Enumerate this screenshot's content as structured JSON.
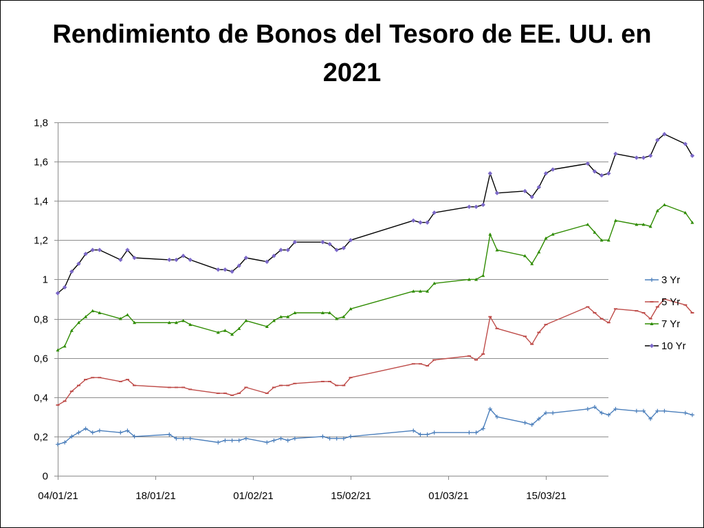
{
  "chart_data": {
    "type": "line",
    "title": "Rendimiento de Bonos del Tesoro de EE. UU. en 2021",
    "title_lines": [
      "Rendimiento de Bonos del Tesoro de EE. UU. en",
      "2021"
    ],
    "xlabel": "",
    "ylabel": "",
    "x_start": "2021-01-04",
    "x_end": "2021-03-24",
    "ylim": [
      0,
      1.8
    ],
    "y_ticks": [
      {
        "value": 0,
        "label": "0"
      },
      {
        "value": 0.2,
        "label": "0,2"
      },
      {
        "value": 0.4,
        "label": "0,4"
      },
      {
        "value": 0.6,
        "label": "0,6"
      },
      {
        "value": 0.8,
        "label": "0,8"
      },
      {
        "value": 1.0,
        "label": "1"
      },
      {
        "value": 1.2,
        "label": "1,2"
      },
      {
        "value": 1.4,
        "label": "1,4"
      },
      {
        "value": 1.6,
        "label": "1,6"
      },
      {
        "value": 1.8,
        "label": "1,8"
      }
    ],
    "x_ticks": [
      {
        "date": "2021-01-04",
        "label": "04/01/21"
      },
      {
        "date": "2021-01-18",
        "label": "18/01/21"
      },
      {
        "date": "2021-02-01",
        "label": "01/02/21"
      },
      {
        "date": "2021-02-15",
        "label": "15/02/21"
      },
      {
        "date": "2021-03-01",
        "label": "01/03/21"
      },
      {
        "date": "2021-03-15",
        "label": "15/03/21"
      }
    ],
    "grid": true,
    "legend_position": "right",
    "x": [
      "2021-01-04",
      "2021-01-05",
      "2021-01-06",
      "2021-01-07",
      "2021-01-08",
      "2021-01-09",
      "2021-01-10",
      "2021-01-11",
      "2021-01-13",
      "2021-01-14",
      "2021-01-15",
      "2021-01-16",
      "2021-01-20",
      "2021-01-21",
      "2021-01-22",
      "2021-01-24",
      "2021-01-25",
      "2021-01-26",
      "2021-01-27",
      "2021-01-29",
      "2021-01-30",
      "2021-01-31",
      "2021-02-01",
      "2021-02-02",
      "2021-02-03",
      "2021-02-04",
      "2021-02-05",
      "2021-02-06",
      "2021-02-08",
      "2021-02-09",
      "2021-02-10",
      "2021-02-11",
      "2021-02-14",
      "2021-02-15",
      "2021-02-16",
      "2021-02-17",
      "2021-02-18",
      "2021-02-19",
      "2021-02-21",
      "2021-02-22",
      "2021-02-23",
      "2021-02-24",
      "2021-02-25",
      "2021-02-26",
      "2021-03-01",
      "2021-03-02",
      "2021-03-03",
      "2021-03-04",
      "2021-03-05",
      "2021-03-06",
      "2021-03-07",
      "2021-03-08",
      "2021-03-10",
      "2021-03-11",
      "2021-03-12",
      "2021-03-13",
      "2021-03-14",
      "2021-03-15",
      "2021-03-17",
      "2021-03-18",
      "2021-03-19",
      "2021-03-20",
      "2021-03-21",
      "2021-03-22",
      "2021-03-24",
      "2021-03-25",
      "2021-03-27",
      "2021-03-28",
      "2021-03-29",
      "2021-03-30",
      "2021-03-31",
      "2021-04-01",
      "2021-04-02",
      "2021-04-03",
      "2021-04-04",
      "2021-04-05",
      "2021-04-06",
      "2021-04-07",
      "2021-04-08",
      "2021-04-09"
    ],
    "series": [
      {
        "name": "3 Yr",
        "color": "#4a7ebb",
        "marker": "plus",
        "points": [
          [
            "2021-01-04",
            0.16
          ],
          [
            "2021-01-05",
            0.17
          ],
          [
            "2021-01-06",
            0.2
          ],
          [
            "2021-01-07",
            0.22
          ],
          [
            "2021-01-08",
            0.24
          ],
          [
            "2021-01-09",
            0.22
          ],
          [
            "2021-01-10",
            0.23
          ],
          [
            "2021-01-13",
            0.22
          ],
          [
            "2021-01-14",
            0.23
          ],
          [
            "2021-01-15",
            0.2
          ],
          [
            "2021-01-20",
            0.21
          ],
          [
            "2021-01-21",
            0.19
          ],
          [
            "2021-01-22",
            0.19
          ],
          [
            "2021-01-23",
            0.19
          ],
          [
            "2021-01-27",
            0.17
          ],
          [
            "2021-01-28",
            0.18
          ],
          [
            "2021-01-29",
            0.18
          ],
          [
            "2021-01-30",
            0.18
          ],
          [
            "2021-01-31",
            0.19
          ],
          [
            "2021-02-03",
            0.17
          ],
          [
            "2021-02-04",
            0.18
          ],
          [
            "2021-02-05",
            0.19
          ],
          [
            "2021-02-06",
            0.18
          ],
          [
            "2021-02-07",
            0.19
          ],
          [
            "2021-02-11",
            0.2
          ],
          [
            "2021-02-12",
            0.19
          ],
          [
            "2021-02-13",
            0.19
          ],
          [
            "2021-02-14",
            0.19
          ],
          [
            "2021-02-15",
            0.2
          ],
          [
            "2021-02-24",
            0.23
          ],
          [
            "2021-02-25",
            0.21
          ],
          [
            "2021-02-26",
            0.21
          ],
          [
            "2021-02-27",
            0.22
          ],
          [
            "2021-03-04",
            0.22
          ],
          [
            "2021-03-05",
            0.22
          ],
          [
            "2021-03-06",
            0.24
          ],
          [
            "2021-03-07",
            0.34
          ],
          [
            "2021-03-08",
            0.3
          ],
          [
            "2021-03-12",
            0.27
          ],
          [
            "2021-03-13",
            0.26
          ],
          [
            "2021-03-14",
            0.29
          ],
          [
            "2021-03-15",
            0.32
          ],
          [
            "2021-03-16",
            0.32
          ],
          [
            "2021-03-21",
            0.34
          ],
          [
            "2021-03-22",
            0.35
          ],
          [
            "2021-03-23",
            0.32
          ],
          [
            "2021-03-24",
            0.31
          ],
          [
            "2021-03-25",
            0.34
          ],
          [
            "2021-03-28",
            0.33
          ],
          [
            "2021-03-29",
            0.33
          ],
          [
            "2021-03-30",
            0.29
          ],
          [
            "2021-03-31",
            0.33
          ],
          [
            "2021-04-01",
            0.33
          ],
          [
            "2021-04-04",
            0.32
          ],
          [
            "2021-04-05",
            0.31
          ]
        ]
      },
      {
        "name": "5 Yr",
        "color": "#be4b48",
        "marker": "dash",
        "points": [
          [
            "2021-01-04",
            0.36
          ],
          [
            "2021-01-05",
            0.38
          ],
          [
            "2021-01-06",
            0.43
          ],
          [
            "2021-01-07",
            0.46
          ],
          [
            "2021-01-08",
            0.49
          ],
          [
            "2021-01-09",
            0.5
          ],
          [
            "2021-01-10",
            0.5
          ],
          [
            "2021-01-13",
            0.48
          ],
          [
            "2021-01-14",
            0.49
          ],
          [
            "2021-01-15",
            0.46
          ],
          [
            "2021-01-20",
            0.45
          ],
          [
            "2021-01-21",
            0.45
          ],
          [
            "2021-01-22",
            0.45
          ],
          [
            "2021-01-23",
            0.44
          ],
          [
            "2021-01-27",
            0.42
          ],
          [
            "2021-01-28",
            0.42
          ],
          [
            "2021-01-29",
            0.41
          ],
          [
            "2021-01-30",
            0.42
          ],
          [
            "2021-01-31",
            0.45
          ],
          [
            "2021-02-03",
            0.42
          ],
          [
            "2021-02-04",
            0.45
          ],
          [
            "2021-02-05",
            0.46
          ],
          [
            "2021-02-06",
            0.46
          ],
          [
            "2021-02-07",
            0.47
          ],
          [
            "2021-02-11",
            0.48
          ],
          [
            "2021-02-12",
            0.48
          ],
          [
            "2021-02-13",
            0.46
          ],
          [
            "2021-02-14",
            0.46
          ],
          [
            "2021-02-15",
            0.5
          ],
          [
            "2021-02-24",
            0.57
          ],
          [
            "2021-02-25",
            0.57
          ],
          [
            "2021-02-26",
            0.56
          ],
          [
            "2021-02-27",
            0.59
          ],
          [
            "2021-03-04",
            0.61
          ],
          [
            "2021-03-05",
            0.59
          ],
          [
            "2021-03-06",
            0.62
          ],
          [
            "2021-03-07",
            0.81
          ],
          [
            "2021-03-08",
            0.75
          ],
          [
            "2021-03-12",
            0.71
          ],
          [
            "2021-03-13",
            0.67
          ],
          [
            "2021-03-14",
            0.73
          ],
          [
            "2021-03-15",
            0.77
          ],
          [
            "2021-03-21",
            0.86
          ],
          [
            "2021-03-22",
            0.83
          ],
          [
            "2021-03-23",
            0.8
          ],
          [
            "2021-03-24",
            0.78
          ],
          [
            "2021-03-25",
            0.85
          ],
          [
            "2021-03-28",
            0.84
          ],
          [
            "2021-03-29",
            0.83
          ],
          [
            "2021-03-30",
            0.8
          ],
          [
            "2021-03-31",
            0.86
          ],
          [
            "2021-04-01",
            0.9
          ],
          [
            "2021-04-04",
            0.87
          ],
          [
            "2021-04-05",
            0.83
          ]
        ]
      },
      {
        "name": "7 Yr",
        "color": "#2e8b00",
        "marker": "triangle",
        "points": [
          [
            "2021-01-04",
            0.64
          ],
          [
            "2021-01-05",
            0.66
          ],
          [
            "2021-01-06",
            0.74
          ],
          [
            "2021-01-07",
            0.78
          ],
          [
            "2021-01-08",
            0.81
          ],
          [
            "2021-01-09",
            0.84
          ],
          [
            "2021-01-10",
            0.83
          ],
          [
            "2021-01-13",
            0.8
          ],
          [
            "2021-01-14",
            0.82
          ],
          [
            "2021-01-15",
            0.78
          ],
          [
            "2021-01-20",
            0.78
          ],
          [
            "2021-01-21",
            0.78
          ],
          [
            "2021-01-22",
            0.79
          ],
          [
            "2021-01-23",
            0.77
          ],
          [
            "2021-01-27",
            0.73
          ],
          [
            "2021-01-28",
            0.74
          ],
          [
            "2021-01-29",
            0.72
          ],
          [
            "2021-01-30",
            0.75
          ],
          [
            "2021-01-31",
            0.79
          ],
          [
            "2021-02-03",
            0.76
          ],
          [
            "2021-02-04",
            0.79
          ],
          [
            "2021-02-05",
            0.81
          ],
          [
            "2021-02-06",
            0.81
          ],
          [
            "2021-02-07",
            0.83
          ],
          [
            "2021-02-11",
            0.83
          ],
          [
            "2021-02-12",
            0.83
          ],
          [
            "2021-02-13",
            0.8
          ],
          [
            "2021-02-14",
            0.81
          ],
          [
            "2021-02-15",
            0.85
          ],
          [
            "2021-02-24",
            0.94
          ],
          [
            "2021-02-25",
            0.94
          ],
          [
            "2021-02-26",
            0.94
          ],
          [
            "2021-02-27",
            0.98
          ],
          [
            "2021-03-04",
            1.0
          ],
          [
            "2021-03-05",
            1.0
          ],
          [
            "2021-03-06",
            1.02
          ],
          [
            "2021-03-07",
            1.23
          ],
          [
            "2021-03-08",
            1.15
          ],
          [
            "2021-03-12",
            1.12
          ],
          [
            "2021-03-13",
            1.08
          ],
          [
            "2021-03-14",
            1.14
          ],
          [
            "2021-03-15",
            1.21
          ],
          [
            "2021-03-16",
            1.23
          ],
          [
            "2021-03-21",
            1.28
          ],
          [
            "2021-03-22",
            1.24
          ],
          [
            "2021-03-23",
            1.2
          ],
          [
            "2021-03-24",
            1.2
          ],
          [
            "2021-03-25",
            1.3
          ],
          [
            "2021-03-28",
            1.28
          ],
          [
            "2021-03-29",
            1.28
          ],
          [
            "2021-03-30",
            1.27
          ],
          [
            "2021-03-31",
            1.35
          ],
          [
            "2021-04-01",
            1.38
          ],
          [
            "2021-04-04",
            1.34
          ],
          [
            "2021-04-05",
            1.29
          ]
        ]
      },
      {
        "name": "10 Yr",
        "color": "#000000",
        "marker": "diamond",
        "marker_color": "#7b68c8",
        "points": [
          [
            "2021-01-04",
            0.93
          ],
          [
            "2021-01-05",
            0.96
          ],
          [
            "2021-01-06",
            1.04
          ],
          [
            "2021-01-07",
            1.08
          ],
          [
            "2021-01-08",
            1.13
          ],
          [
            "2021-01-09",
            1.15
          ],
          [
            "2021-01-10",
            1.15
          ],
          [
            "2021-01-13",
            1.1
          ],
          [
            "2021-01-14",
            1.15
          ],
          [
            "2021-01-15",
            1.11
          ],
          [
            "2021-01-20",
            1.1
          ],
          [
            "2021-01-21",
            1.1
          ],
          [
            "2021-01-22",
            1.12
          ],
          [
            "2021-01-23",
            1.1
          ],
          [
            "2021-01-27",
            1.05
          ],
          [
            "2021-01-28",
            1.05
          ],
          [
            "2021-01-29",
            1.04
          ],
          [
            "2021-01-30",
            1.07
          ],
          [
            "2021-01-31",
            1.11
          ],
          [
            "2021-02-03",
            1.09
          ],
          [
            "2021-02-04",
            1.12
          ],
          [
            "2021-02-05",
            1.15
          ],
          [
            "2021-02-06",
            1.15
          ],
          [
            "2021-02-07",
            1.19
          ],
          [
            "2021-02-11",
            1.19
          ],
          [
            "2021-02-12",
            1.18
          ],
          [
            "2021-02-13",
            1.15
          ],
          [
            "2021-02-14",
            1.16
          ],
          [
            "2021-02-15",
            1.2
          ],
          [
            "2021-02-24",
            1.3
          ],
          [
            "2021-02-25",
            1.29
          ],
          [
            "2021-02-26",
            1.29
          ],
          [
            "2021-02-27",
            1.34
          ],
          [
            "2021-03-04",
            1.37
          ],
          [
            "2021-03-05",
            1.37
          ],
          [
            "2021-03-06",
            1.38
          ],
          [
            "2021-03-07",
            1.54
          ],
          [
            "2021-03-08",
            1.44
          ],
          [
            "2021-03-12",
            1.45
          ],
          [
            "2021-03-13",
            1.42
          ],
          [
            "2021-03-14",
            1.47
          ],
          [
            "2021-03-15",
            1.54
          ],
          [
            "2021-03-16",
            1.56
          ],
          [
            "2021-03-21",
            1.59
          ],
          [
            "2021-03-22",
            1.55
          ],
          [
            "2021-03-23",
            1.53
          ],
          [
            "2021-03-24",
            1.54
          ],
          [
            "2021-03-25",
            1.64
          ],
          [
            "2021-03-28",
            1.62
          ],
          [
            "2021-03-29",
            1.62
          ],
          [
            "2021-03-30",
            1.63
          ],
          [
            "2021-03-31",
            1.71
          ],
          [
            "2021-04-01",
            1.74
          ],
          [
            "2021-04-04",
            1.69
          ],
          [
            "2021-04-05",
            1.63
          ]
        ]
      }
    ]
  }
}
